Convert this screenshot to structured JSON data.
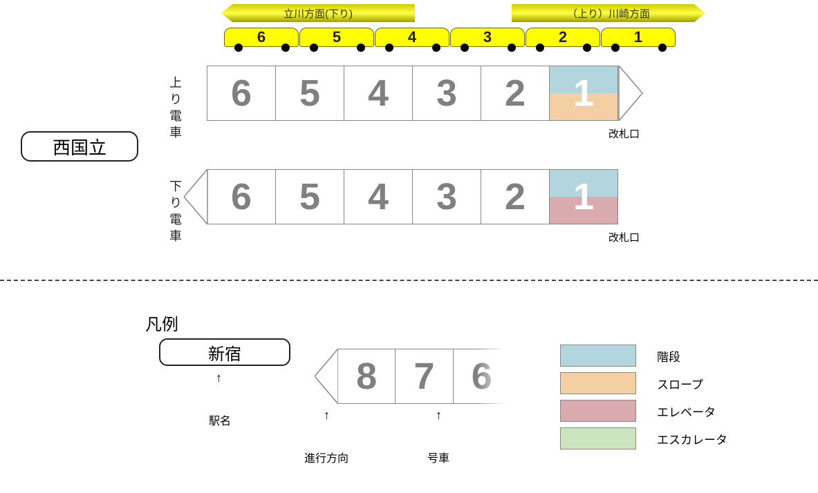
{
  "colors": {
    "yellow": "#ffff00",
    "yellow_border": "#666600",
    "yellow_grad_start": "#cccc00",
    "yellow_grad_mid": "#ffff33",
    "car_number": "#808080",
    "car_border": "#888888",
    "stairs": "#b3d6de",
    "slope": "#f5cfa4",
    "elevator": "#d9abae",
    "escalator": "#cde4c0",
    "text": "#222222"
  },
  "direction_left": "立川方面(下り)",
  "direction_right": "（上り）川崎方面",
  "yellow_cars": [
    "6",
    "5",
    "4",
    "3",
    "2",
    "1"
  ],
  "station_name": "西国立",
  "up_label": "上り電車",
  "down_label": "下り電車",
  "cars": [
    "6",
    "5",
    "4",
    "3",
    "2",
    "1"
  ],
  "gate_label": "改札口",
  "up_row": {
    "front": "right",
    "special_car": {
      "index": 5,
      "top_color": "stairs",
      "bottom_color": "slope",
      "num_color": "#ffffff"
    }
  },
  "down_row": {
    "front": "left",
    "special_car": {
      "index": 5,
      "top_color": "stairs",
      "bottom_color": "elevator",
      "num_color": "#ffffff"
    }
  },
  "legend": {
    "title": "凡例",
    "sample_station": "新宿",
    "sample_cars": [
      "8",
      "7",
      "6"
    ],
    "station_label": "駅名",
    "direction_label": "進行方向",
    "car_label": "号車",
    "items": [
      {
        "color_key": "stairs",
        "label": "階段"
      },
      {
        "color_key": "slope",
        "label": "スロープ"
      },
      {
        "color_key": "elevator",
        "label": "エレベータ"
      },
      {
        "color_key": "escalator",
        "label": "エスカレータ"
      }
    ]
  }
}
